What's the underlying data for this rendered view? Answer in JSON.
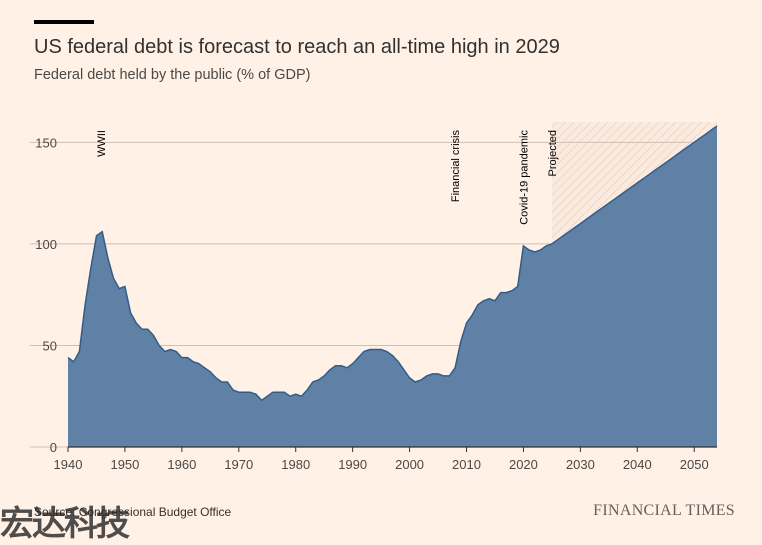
{
  "title": "US federal debt is forecast to reach an all-time high in 2029",
  "subtitle": "Federal debt held by the public (% of GDP)",
  "source": "Source: Congressional Budget Office",
  "brand": "FINANCIAL TIMES",
  "watermark": "宏达科技",
  "colors": {
    "background": "#FFF1E5",
    "area": "#5F81A6",
    "area_line": "#335C8A",
    "gridline": "#CCC1B7",
    "projection_hatch": "#E6CFC0"
  },
  "chart_data": {
    "type": "area",
    "title": "US federal debt is forecast to reach an all-time high in 2029",
    "subtitle": "Federal debt held by the public (% of GDP)",
    "xlabel": "",
    "ylabel": "",
    "xlim": [
      1940,
      2054
    ],
    "ylim": [
      0,
      160
    ],
    "x_ticks": [
      1940,
      1950,
      1960,
      1970,
      1980,
      1990,
      2000,
      2010,
      2020,
      2030,
      2040,
      2050
    ],
    "y_ticks": [
      0,
      50,
      100,
      150
    ],
    "grid": true,
    "projection_start": 2025,
    "series": [
      {
        "x": [
          1940,
          1941,
          1942,
          1943,
          1944,
          1945,
          1946,
          1947,
          1948,
          1949,
          1950,
          1951,
          1952,
          1953,
          1954,
          1955,
          1956,
          1957,
          1958,
          1959,
          1960,
          1961,
          1962,
          1963,
          1964,
          1965,
          1966,
          1967,
          1968,
          1969,
          1970,
          1971,
          1972,
          1973,
          1974,
          1975,
          1976,
          1977,
          1978,
          1979,
          1980,
          1981,
          1982,
          1983,
          1984,
          1985,
          1986,
          1987,
          1988,
          1989,
          1990,
          1991,
          1992,
          1993,
          1994,
          1995,
          1996,
          1997,
          1998,
          1999,
          2000,
          2001,
          2002,
          2003,
          2004,
          2005,
          2006,
          2007,
          2008,
          2009,
          2010,
          2011,
          2012,
          2013,
          2014,
          2015,
          2016,
          2017,
          2018,
          2019,
          2020,
          2021,
          2022,
          2023,
          2024,
          2025,
          2026,
          2027,
          2028,
          2029,
          2030,
          2031,
          2032,
          2033,
          2034,
          2035,
          2036,
          2037,
          2038,
          2039,
          2040,
          2041,
          2042,
          2043,
          2044,
          2045,
          2046,
          2047,
          2048,
          2049,
          2050,
          2051,
          2052,
          2053,
          2054
        ],
        "values": [
          44,
          42,
          47,
          70,
          88,
          104,
          106,
          93,
          83,
          78,
          79,
          66,
          61,
          58,
          58,
          55,
          50,
          47,
          48,
          47,
          44,
          44,
          42,
          41,
          39,
          37,
          34,
          32,
          32,
          28,
          27,
          27,
          27,
          26,
          23,
          25,
          27,
          27,
          27,
          25,
          26,
          25,
          28,
          32,
          33,
          35,
          38,
          40,
          40,
          39,
          41,
          44,
          47,
          48,
          48,
          48,
          47,
          45,
          42,
          38,
          34,
          32,
          33,
          35,
          36,
          36,
          35,
          35,
          39,
          52,
          61,
          65,
          70,
          72,
          73,
          72,
          76,
          76,
          77,
          79,
          99,
          97,
          96,
          97,
          99,
          100,
          102,
          104,
          106,
          108,
          110,
          112,
          114,
          116,
          118,
          120,
          122,
          124,
          126,
          128,
          130,
          132,
          134,
          136,
          138,
          140,
          142,
          144,
          146,
          148,
          150,
          152,
          154,
          156,
          158
        ]
      }
    ],
    "annotations": [
      {
        "x": 1946,
        "label": "WWII"
      },
      {
        "x": 2008,
        "label": "Financial crisis"
      },
      {
        "x": 2020,
        "label": "Covid-19 pandemic"
      },
      {
        "x": 2025,
        "label": "Projected"
      }
    ]
  }
}
